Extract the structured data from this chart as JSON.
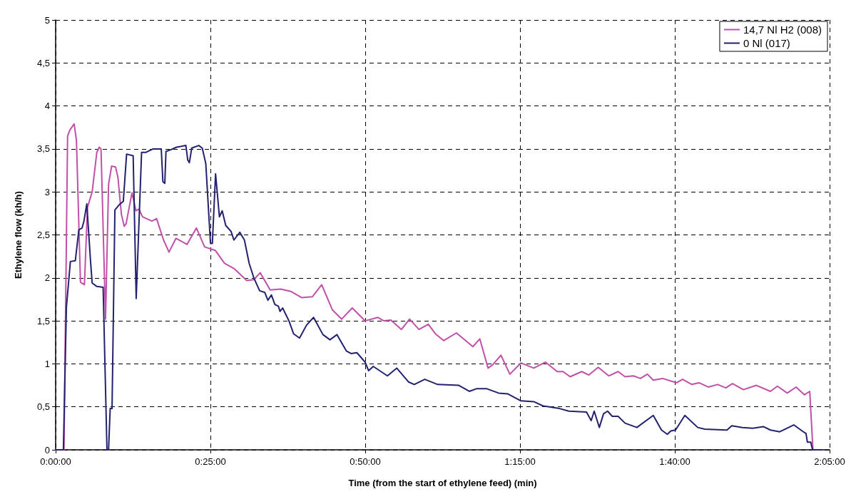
{
  "chart_data": {
    "type": "line",
    "xlabel": "Time (from the start of ethylene feed) (min)",
    "ylabel": "Ethylene flow (kh/h)",
    "xlim": [
      0,
      125
    ],
    "xticks": [
      {
        "value": 0,
        "label": "0:00:00"
      },
      {
        "value": 25,
        "label": "0:25:00"
      },
      {
        "value": 50,
        "label": "0:50:00"
      },
      {
        "value": 75,
        "label": "1:15:00"
      },
      {
        "value": 100,
        "label": "1:40:00"
      },
      {
        "value": 125,
        "label": "2:05:00"
      }
    ],
    "ylim": [
      0,
      5
    ],
    "yticks": [
      0,
      {
        "value": 0.5,
        "label": "0,5"
      },
      1,
      {
        "value": 1.5,
        "label": "1,5"
      },
      2,
      {
        "value": 2.5,
        "label": "2,5"
      },
      3,
      {
        "value": 3.5,
        "label": "3,5"
      },
      4,
      {
        "value": 4.5,
        "label": "4,5"
      },
      5
    ],
    "grid": true,
    "legend": "top right",
    "marker": "none",
    "line_style": "solid",
    "series": [
      {
        "name": "14,7 Nl H2 (008)",
        "color": "#c050a8",
        "x": [
          0,
          1.35,
          1.93,
          2.3,
          2.99,
          3.36,
          4.01,
          4.65,
          5.14,
          5.9,
          6.65,
          7.04,
          7.33,
          8.06,
          8.55,
          9.04,
          9.68,
          10.06,
          10.62,
          11.08,
          11.38,
          12.33,
          12.97,
          13.46,
          14.03,
          15.55,
          16.3,
          17.43,
          18.31,
          19.44,
          21.23,
          22.74,
          24.06,
          25.77,
          27.28,
          28.79,
          30.87,
          32.01,
          33.03,
          34.65,
          36.36,
          38.06,
          39.76,
          41.46,
          42.97,
          44.68,
          46.2,
          47.9,
          49.98,
          52.05,
          53.01,
          54.14,
          55.85,
          57.16,
          58.68,
          60.19,
          61.33,
          62.66,
          64.73,
          67.38,
          68.51,
          69.84,
          70.6,
          71.92,
          73.36,
          75.14,
          77.22,
          79.11,
          81,
          81.95,
          83.09,
          84.97,
          86.11,
          87.63,
          89.33,
          90.84,
          91.97,
          93.3,
          94.44,
          95.57,
          96.52,
          98.03,
          100.3,
          101.25,
          102.76,
          103.9,
          105.4,
          106.92,
          108.24,
          109.31,
          111.08,
          113.17,
          115.44,
          116.57,
          118.16,
          119.59,
          120.92,
          121.79,
          122.31,
          123.77
        ],
        "values": [
          0,
          0,
          3.65,
          3.72,
          3.79,
          3.6,
          1.95,
          1.92,
          2.82,
          3,
          3.46,
          3.52,
          3.5,
          1.52,
          3.09,
          3.3,
          3.29,
          3.17,
          2.74,
          2.6,
          2.63,
          2.99,
          2.78,
          2.8,
          2.71,
          2.66,
          2.69,
          2.44,
          2.3,
          2.46,
          2.39,
          2.58,
          2.36,
          2.32,
          2.17,
          2.11,
          1.97,
          1.98,
          2.06,
          1.86,
          1.87,
          1.84,
          1.77,
          1.78,
          1.92,
          1.63,
          1.52,
          1.65,
          1.5,
          1.54,
          1.5,
          1.51,
          1.4,
          1.52,
          1.4,
          1.46,
          1.35,
          1.27,
          1.36,
          1.2,
          1.29,
          0.95,
          0.99,
          1.1,
          0.88,
          1.01,
          0.95,
          1.02,
          0.91,
          0.91,
          0.85,
          0.91,
          0.87,
          0.96,
          0.86,
          0.91,
          0.85,
          0.86,
          0.83,
          0.88,
          0.81,
          0.83,
          0.78,
          0.82,
          0.76,
          0.78,
          0.73,
          0.76,
          0.72,
          0.77,
          0.7,
          0.75,
          0.68,
          0.74,
          0.66,
          0.73,
          0.64,
          0.68,
          0,
          0
        ]
      },
      {
        "name": "0 Nl (017)",
        "color": "#22226e",
        "x": [
          0,
          1.25,
          1.74,
          2.38,
          3.18,
          3.75,
          4.27,
          4.57,
          5.03,
          5.63,
          5.9,
          6.65,
          7.67,
          8.29,
          8.55,
          8.81,
          9.11,
          9.57,
          10.25,
          10.93,
          11.46,
          12.52,
          13.01,
          13.88,
          14.6,
          15.73,
          17.06,
          17.32,
          17.63,
          17.82,
          18.57,
          19.52,
          21.03,
          21.34,
          21.6,
          21.98,
          23.11,
          23.68,
          24.25,
          25.01,
          25.31,
          25.83,
          26.45,
          26.9,
          27.47,
          28.33,
          28.79,
          29.74,
          30.49,
          31.25,
          32.01,
          32.95,
          33.78,
          34.28,
          34.85,
          35.41,
          35.98,
          36.24,
          36.66,
          37.68,
          38.43,
          39.39,
          40.52,
          41.66,
          43.17,
          44.3,
          45.44,
          46.95,
          47.71,
          48.65,
          49.98,
          50.55,
          51.3,
          53.58,
          55.09,
          56.98,
          57.92,
          59.62,
          61.7,
          65.11,
          66.81,
          67.95,
          69.65,
          71.54,
          73.05,
          75.14,
          77.22,
          78.73,
          81.38,
          82.89,
          85.73,
          86.49,
          86.98,
          87.81,
          88.49,
          89.14,
          89.9,
          90.84,
          91.97,
          93.87,
          96.52,
          97.85,
          98.79,
          99.36,
          100.11,
          101.62,
          103.7,
          104.84,
          108.43,
          109.2,
          110.9,
          112.6,
          114.3,
          115.44,
          116.95,
          119.22,
          120.55,
          121.19,
          121.41,
          121.95,
          122.25,
          123.77
        ],
        "values": [
          0,
          0,
          1.66,
          2.19,
          2.2,
          2.56,
          2.58,
          2.66,
          2.86,
          2.2,
          1.94,
          1.9,
          1.89,
          0,
          0,
          0.48,
          0.48,
          2.79,
          2.85,
          2.89,
          3.44,
          3.42,
          1.76,
          3.46,
          3.46,
          3.5,
          3.5,
          3.12,
          3.1,
          3.47,
          3.49,
          3.52,
          3.54,
          3.37,
          3.34,
          3.51,
          3.54,
          3.51,
          3.33,
          2.4,
          2.4,
          3.21,
          2.71,
          2.78,
          2.61,
          2.54,
          2.44,
          2.53,
          2.44,
          2.17,
          2,
          1.85,
          1.83,
          1.74,
          1.8,
          1.69,
          1.67,
          1.61,
          1.65,
          1.5,
          1.35,
          1.3,
          1.45,
          1.54,
          1.34,
          1.28,
          1.34,
          1.15,
          1.12,
          1.13,
          1.02,
          0.92,
          0.97,
          0.86,
          0.95,
          0.79,
          0.76,
          0.82,
          0.76,
          0.75,
          0.68,
          0.71,
          0.71,
          0.66,
          0.65,
          0.57,
          0.56,
          0.51,
          0.48,
          0.45,
          0.44,
          0.34,
          0.45,
          0.26,
          0.42,
          0.45,
          0.39,
          0.39,
          0.31,
          0.26,
          0.4,
          0.23,
          0.18,
          0.22,
          0.23,
          0.4,
          0.26,
          0.24,
          0.23,
          0.28,
          0.26,
          0.25,
          0.27,
          0.23,
          0.21,
          0.29,
          0.22,
          0.19,
          0.09,
          0.09,
          0,
          0
        ]
      }
    ]
  }
}
